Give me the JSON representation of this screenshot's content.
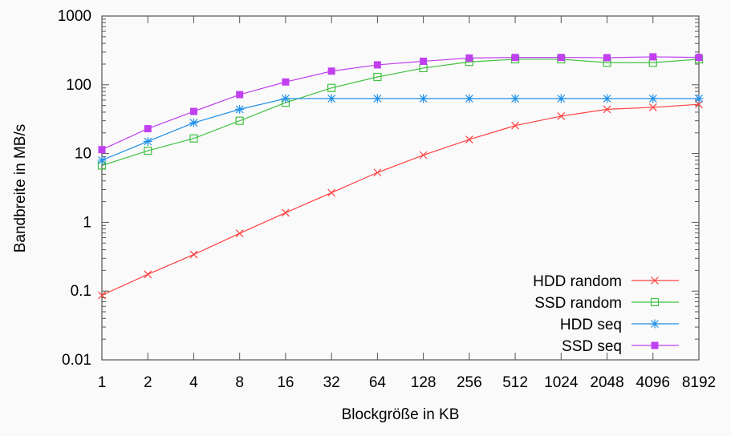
{
  "chart_data": {
    "type": "line",
    "title": "",
    "xlabel": "Blockgröße in KB",
    "ylabel": "Bandbreite in MB/s",
    "y_scale": "log",
    "ylim": [
      0.01,
      1000
    ],
    "y_ticks": [
      "0.01",
      "0.1",
      "1",
      "10",
      "100",
      "1000"
    ],
    "y_tick_values": [
      0.01,
      0.1,
      1,
      10,
      100,
      1000
    ],
    "categories": [
      "1",
      "2",
      "4",
      "8",
      "16",
      "32",
      "64",
      "128",
      "256",
      "512",
      "1024",
      "2048",
      "4096",
      "8192"
    ],
    "grid": false,
    "legend_position": "bottom-right",
    "series": [
      {
        "name": "HDD random",
        "color": "#ff4040",
        "marker": "x",
        "values": [
          0.087,
          0.175,
          0.34,
          0.69,
          1.38,
          2.7,
          5.3,
          9.5,
          16,
          25.5,
          35,
          44,
          47,
          52
        ]
      },
      {
        "name": "SSD random",
        "color": "#40c040",
        "marker": "open-square",
        "values": [
          6.7,
          11,
          16.6,
          30,
          55,
          90,
          130,
          175,
          215,
          235,
          235,
          210,
          210,
          235
        ]
      },
      {
        "name": "HDD seq",
        "color": "#2090e8",
        "marker": "asterisk",
        "values": [
          8,
          15,
          28,
          44,
          63,
          63,
          63,
          63,
          63,
          63,
          63,
          63,
          63,
          63
        ]
      },
      {
        "name": "SSD seq",
        "color": "#c040f0",
        "marker": "filled-square",
        "values": [
          11.4,
          23,
          41,
          72,
          110,
          158,
          195,
          220,
          245,
          250,
          250,
          248,
          255,
          250
        ]
      }
    ]
  }
}
